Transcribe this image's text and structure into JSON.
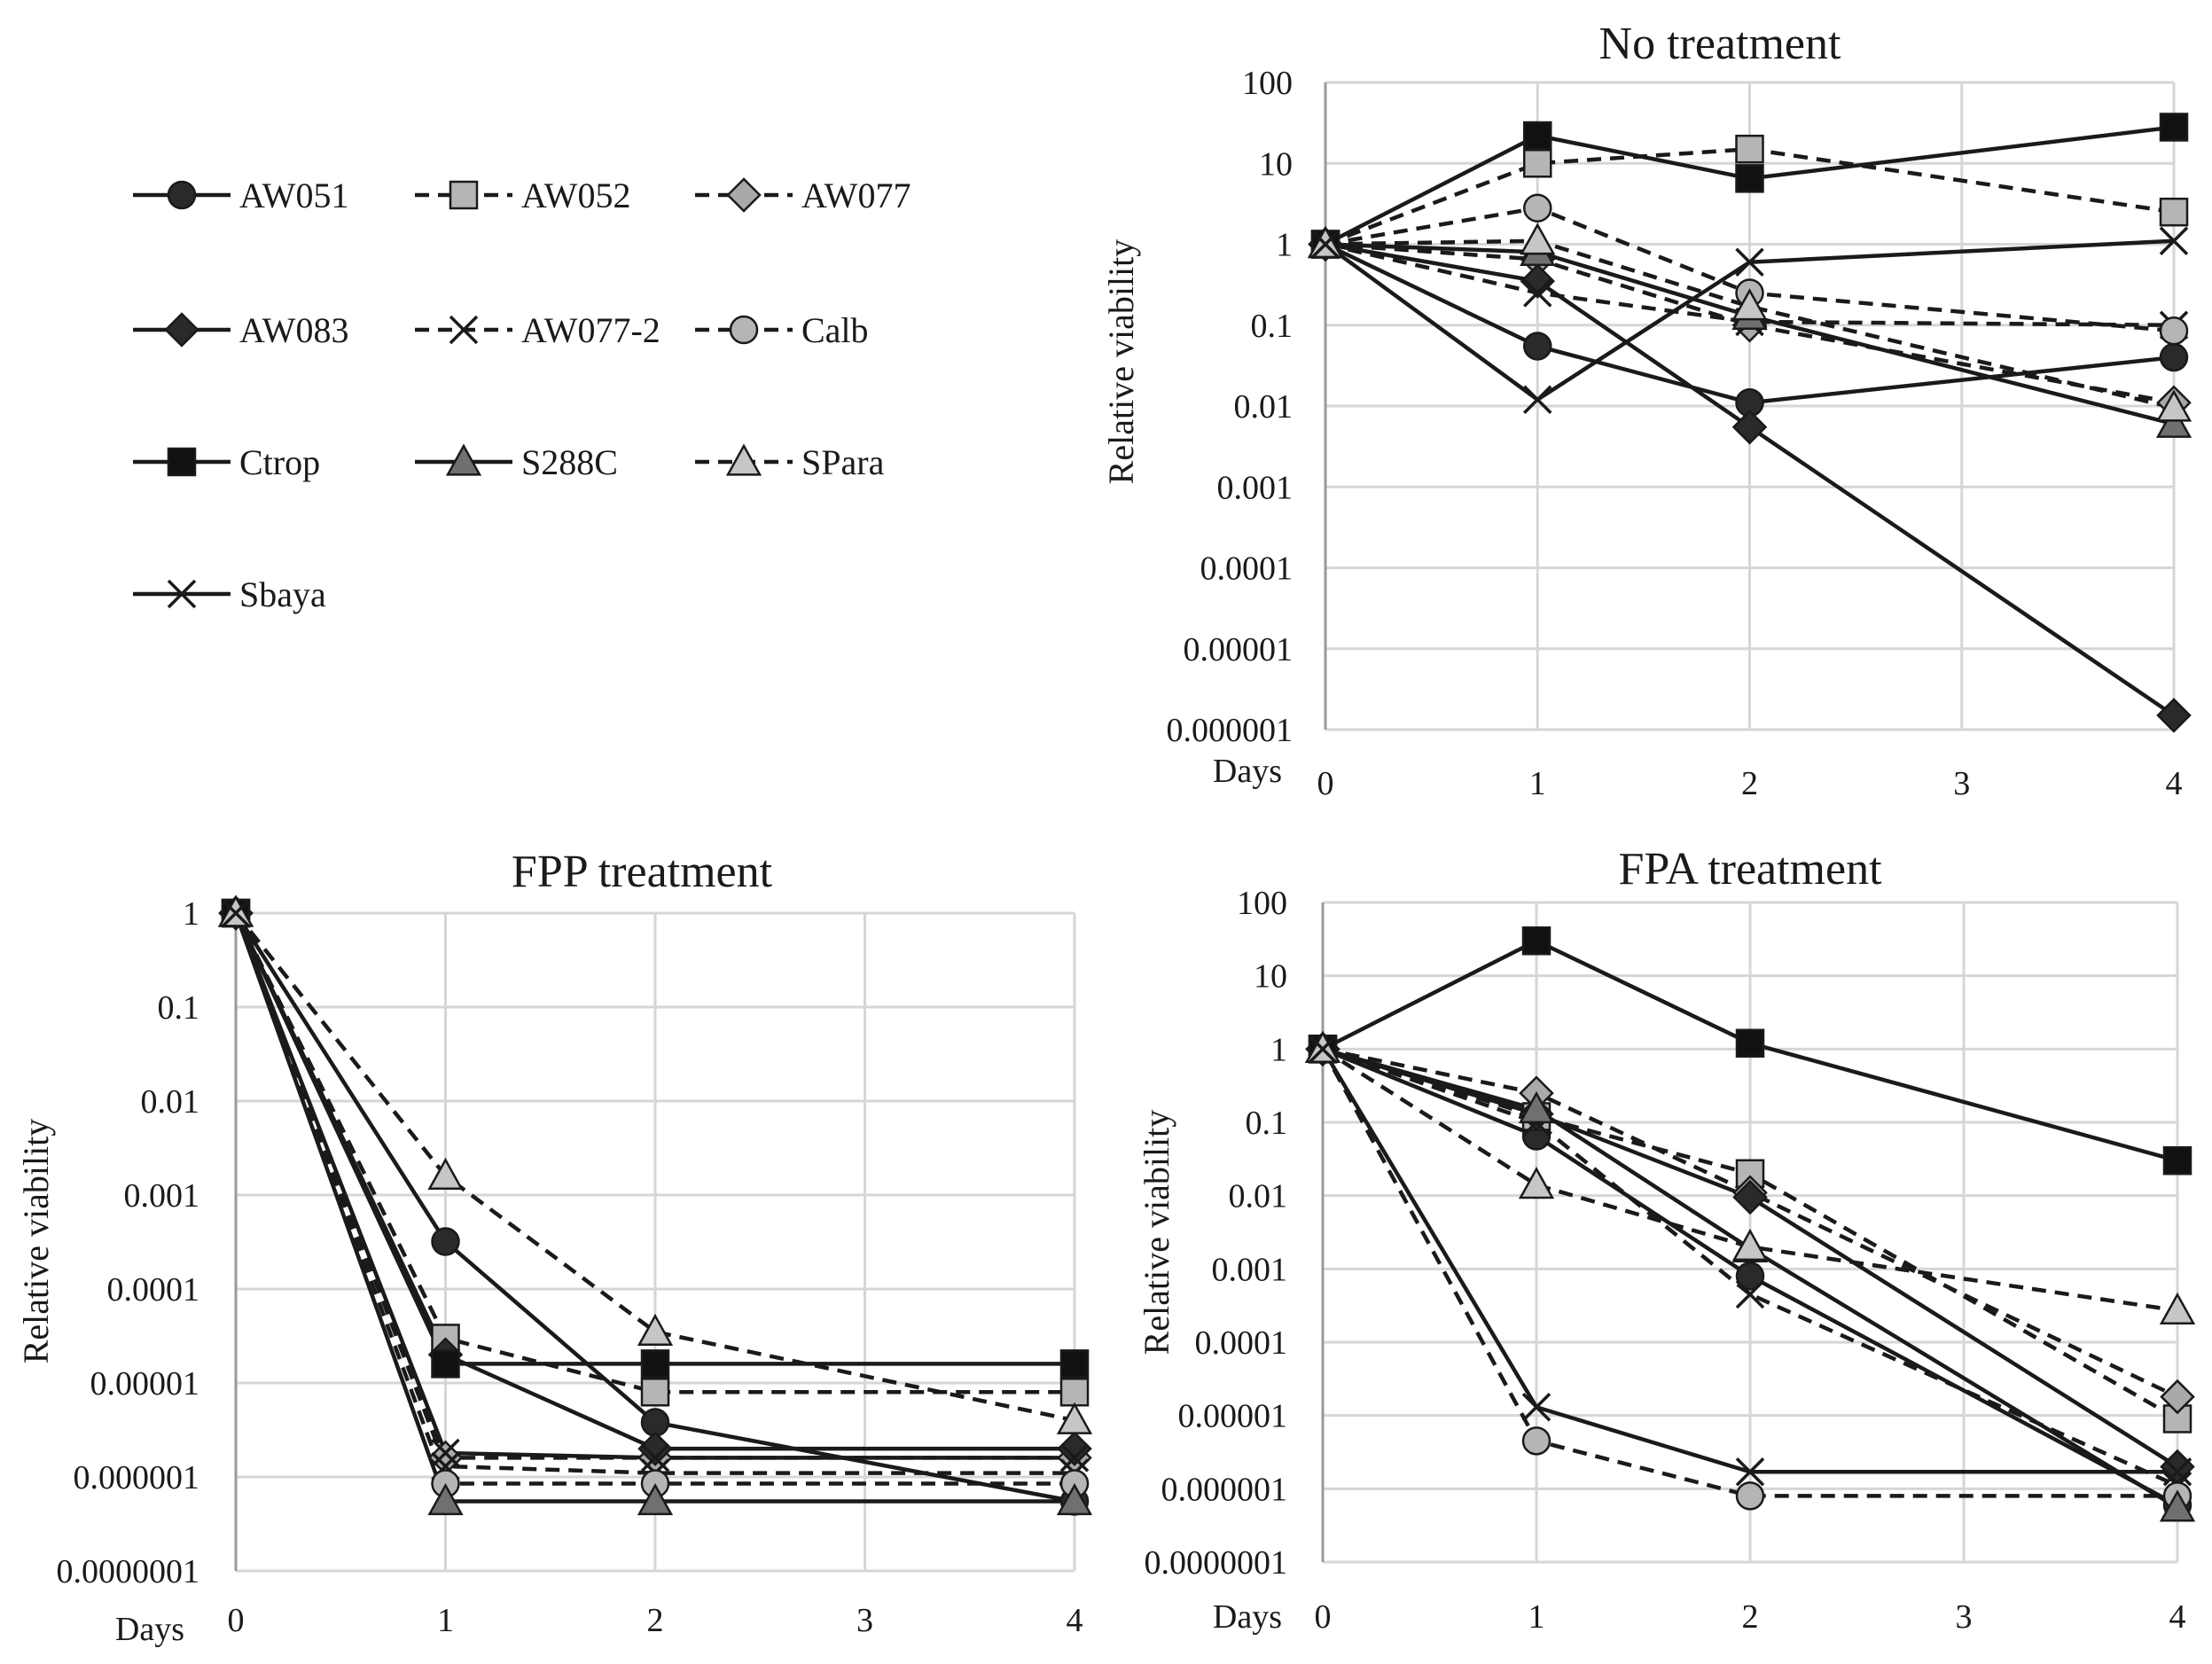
{
  "legend": [
    {
      "name": "AW051",
      "marker": "circle",
      "fill": "#2a2a2a",
      "dash": "solid"
    },
    {
      "name": "AW052",
      "marker": "square",
      "fill": "#b5b5b5",
      "dash": "dashed"
    },
    {
      "name": "AW077",
      "marker": "diamond",
      "fill": "#a9a9a9",
      "dash": "dashed"
    },
    {
      "name": "AW083",
      "marker": "diamond",
      "fill": "#2a2a2a",
      "dash": "solid"
    },
    {
      "name": "AW077-2",
      "marker": "x",
      "fill": "#1a1a1a",
      "dash": "dashed"
    },
    {
      "name": "Calb",
      "marker": "circle",
      "fill": "#b5b5b5",
      "dash": "dashed"
    },
    {
      "name": "Ctrop",
      "marker": "square",
      "fill": "#111111",
      "dash": "solid"
    },
    {
      "name": "S288C",
      "marker": "triangle",
      "fill": "#707070",
      "dash": "solid"
    },
    {
      "name": "SPara",
      "marker": "triangle",
      "fill": "#c6c6c6",
      "dash": "dashed"
    },
    {
      "name": "Sbaya",
      "marker": "x",
      "fill": "#1a1a1a",
      "dash": "solid"
    }
  ],
  "chart_data": [
    {
      "id": "no-treatment",
      "type": "line",
      "title": "No treatment",
      "xlabel": "Days",
      "ylabel": "Relative viability",
      "yscale": "log",
      "ylim": [
        1e-06,
        100
      ],
      "x": [
        0,
        1,
        2,
        3,
        4
      ],
      "x_tick_labels": [
        "0",
        "1",
        "2",
        "3",
        "4"
      ],
      "y_tick_labels": [
        "100",
        "10",
        "1",
        "0.1",
        "0.01",
        "0.001",
        "0.0001",
        "0.00001",
        "0.000001"
      ],
      "series": [
        {
          "name": "AW051",
          "x": [
            0,
            1,
            2,
            4
          ],
          "values": [
            1,
            0.055,
            0.011,
            0.04
          ]
        },
        {
          "name": "AW052",
          "x": [
            0,
            1,
            2,
            4
          ],
          "values": [
            1,
            10,
            15,
            2.5
          ]
        },
        {
          "name": "AW077",
          "x": [
            0,
            1,
            2,
            4
          ],
          "values": [
            1,
            0.65,
            0.1,
            0.011
          ]
        },
        {
          "name": "AW083",
          "x": [
            0,
            1,
            2,
            4
          ],
          "values": [
            1,
            0.35,
            0.0055,
            1.5e-06
          ]
        },
        {
          "name": "AW077-2",
          "x": [
            0,
            1,
            2,
            4
          ],
          "values": [
            1,
            0.25,
            0.11,
            0.1
          ]
        },
        {
          "name": "Calb",
          "x": [
            0,
            1,
            2,
            4
          ],
          "values": [
            1,
            2.8,
            0.25,
            0.085
          ]
        },
        {
          "name": "Ctrop",
          "x": [
            0,
            1,
            2,
            4
          ],
          "values": [
            1,
            22,
            6.5,
            28
          ]
        },
        {
          "name": "S288C",
          "x": [
            0,
            1,
            2,
            4
          ],
          "values": [
            1,
            0.8,
            0.13,
            0.006
          ]
        },
        {
          "name": "SPara",
          "x": [
            0,
            1,
            2,
            4
          ],
          "values": [
            1,
            1.1,
            0.17,
            0.0095
          ]
        },
        {
          "name": "Sbaya",
          "x": [
            0,
            1,
            2,
            4
          ],
          "values": [
            1,
            0.012,
            0.6,
            1.1
          ]
        }
      ]
    },
    {
      "id": "fpp-treatment",
      "type": "line",
      "title": "FPP treatment",
      "xlabel": "Days",
      "ylabel": "Relative viability",
      "yscale": "log",
      "ylim": [
        1e-07,
        1
      ],
      "x": [
        0,
        1,
        2,
        3,
        4
      ],
      "x_tick_labels": [
        "0",
        "1",
        "2",
        "3",
        "4"
      ],
      "y_tick_labels": [
        "1",
        "0.1",
        "0.01",
        "0.001",
        "0.0001",
        "0.00001",
        "0.000001",
        "0.0000001"
      ],
      "series": [
        {
          "name": "AW051",
          "x": [
            0,
            1,
            2,
            4
          ],
          "values": [
            1,
            0.00032,
            3.8e-06,
            5.5e-07
          ]
        },
        {
          "name": "AW052",
          "x": [
            0,
            1,
            2,
            4
          ],
          "values": [
            1,
            3e-05,
            8e-06,
            8e-06
          ]
        },
        {
          "name": "AW077",
          "x": [
            0,
            1,
            2,
            4
          ],
          "values": [
            1,
            1.6e-06,
            1.6e-06,
            1.6e-06
          ]
        },
        {
          "name": "AW083",
          "x": [
            0,
            1,
            2,
            4
          ],
          "values": [
            1,
            2e-05,
            2e-06,
            2e-06
          ]
        },
        {
          "name": "AW077-2",
          "x": [
            0,
            1,
            2,
            4
          ],
          "values": [
            1,
            1.3e-06,
            1.1e-06,
            1.1e-06
          ]
        },
        {
          "name": "Calb",
          "x": [
            0,
            1,
            2,
            4
          ],
          "values": [
            1,
            8.5e-07,
            8.5e-07,
            8.5e-07
          ]
        },
        {
          "name": "Ctrop",
          "x": [
            0,
            1,
            2,
            4
          ],
          "values": [
            1,
            1.6e-05,
            1.6e-05,
            1.6e-05
          ]
        },
        {
          "name": "S288C",
          "x": [
            0,
            1,
            2,
            4
          ],
          "values": [
            1,
            5.5e-07,
            5.5e-07,
            5.5e-07
          ]
        },
        {
          "name": "SPara",
          "x": [
            0,
            1,
            2,
            4
          ],
          "values": [
            1,
            0.0016,
            3.5e-05,
            4e-06
          ]
        },
        {
          "name": "Sbaya",
          "x": [
            0,
            1,
            2,
            4
          ],
          "values": [
            1,
            1.8e-06,
            1.6e-06,
            1.6e-06
          ]
        }
      ]
    },
    {
      "id": "fpa-treatment",
      "type": "line",
      "title": "FPA treatment",
      "xlabel": "Days",
      "ylabel": "Relative viability",
      "yscale": "log",
      "ylim": [
        1e-07,
        100
      ],
      "x": [
        0,
        1,
        2,
        3,
        4
      ],
      "x_tick_labels": [
        "0",
        "1",
        "2",
        "3",
        "4"
      ],
      "y_tick_labels": [
        "100",
        "10",
        "1",
        "0.1",
        "0.01",
        "0.001",
        "0.0001",
        "0.00001",
        "0.000001",
        "0.0000001"
      ],
      "series": [
        {
          "name": "AW051",
          "x": [
            0,
            1,
            2,
            4
          ],
          "values": [
            1,
            0.065,
            0.0008,
            6e-07
          ]
        },
        {
          "name": "AW052",
          "x": [
            0,
            1,
            2,
            4
          ],
          "values": [
            1,
            0.12,
            0.02,
            9e-06
          ]
        },
        {
          "name": "AW077",
          "x": [
            0,
            1,
            2,
            4
          ],
          "values": [
            1,
            0.25,
            0.011,
            1.8e-05
          ]
        },
        {
          "name": "AW083",
          "x": [
            0,
            1,
            2,
            4
          ],
          "values": [
            1,
            0.13,
            0.0095,
            2e-06
          ]
        },
        {
          "name": "AW077-2",
          "x": [
            0,
            1,
            2,
            4
          ],
          "values": [
            1,
            0.1,
            0.00045,
            1.1e-06
          ]
        },
        {
          "name": "Calb",
          "x": [
            0,
            1,
            2,
            4
          ],
          "values": [
            1,
            4.5e-06,
            8e-07,
            8e-07
          ]
        },
        {
          "name": "Ctrop",
          "x": [
            0,
            1,
            2,
            4
          ],
          "values": [
            1,
            30,
            1.2,
            0.03
          ]
        },
        {
          "name": "S288C",
          "x": [
            0,
            1,
            2,
            4
          ],
          "values": [
            1,
            0.15,
            0.0019,
            5.5e-07
          ]
        },
        {
          "name": "SPara",
          "x": [
            0,
            1,
            2,
            4
          ],
          "values": [
            1,
            0.014,
            0.002,
            0.00027
          ]
        },
        {
          "name": "Sbaya",
          "x": [
            0,
            1,
            2,
            4
          ],
          "values": [
            1,
            1.3e-05,
            1.7e-06,
            1.7e-06
          ]
        }
      ]
    }
  ]
}
